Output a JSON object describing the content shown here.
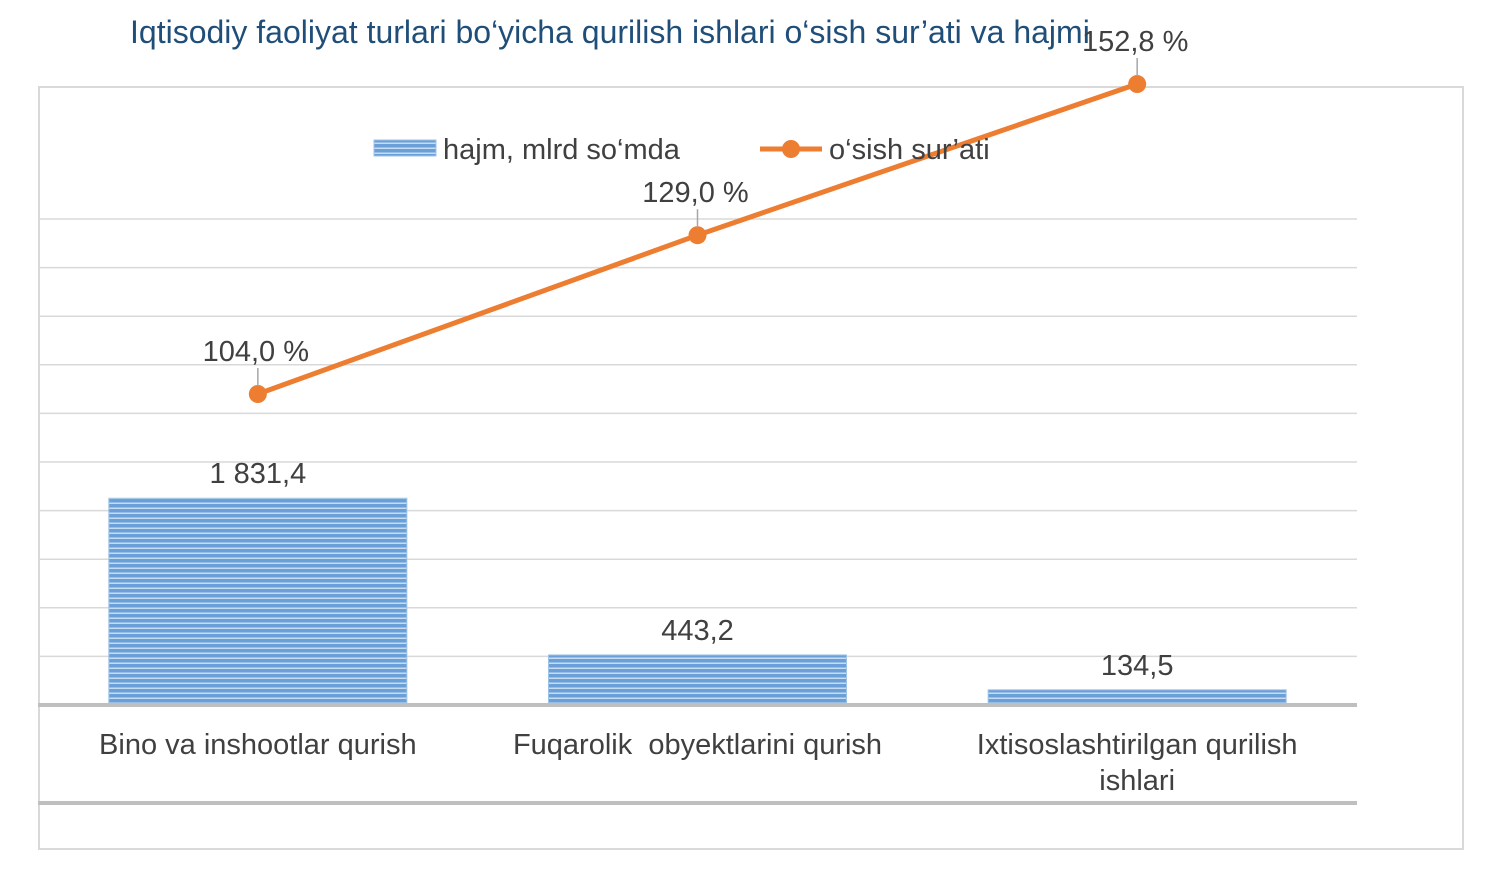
{
  "title": "Iqtisodiy faoliyat turlari bo‘yicha qurilish ishlari o‘sish sur’ati va hajmi",
  "colors": {
    "bar": "#6a9fd8",
    "bar_stripe": "#c6dcf2",
    "line": "#ed7d31",
    "title": "#1f4e79",
    "grid": "#d9d9d9",
    "text": "#404040"
  },
  "chart_data": {
    "type": "bar",
    "title": "Iqtisodiy faoliyat turlari bo‘yicha qurilish ishlari o‘sish sur’ati va hajmi",
    "categories": [
      [
        "Bino va inshootlar qurish"
      ],
      [
        "Fuqarolik  obyektlarini qurish"
      ],
      [
        "Ixtisoslashtirilgan qurilish",
        "ishlari"
      ]
    ],
    "series": [
      {
        "name": "hajm, mlrd so‘mda",
        "type": "bar",
        "values": [
          1831.4,
          443.2,
          134.5
        ],
        "labels": [
          "1 831,4",
          "443,2",
          "134,5"
        ]
      },
      {
        "name": "o‘sish sur’ati",
        "type": "line",
        "values": [
          104.0,
          129.0,
          152.8
        ],
        "labels": [
          "104,0 %",
          "129,0 %",
          "152,8 %"
        ]
      }
    ],
    "legend_position": "top",
    "grid": true
  }
}
